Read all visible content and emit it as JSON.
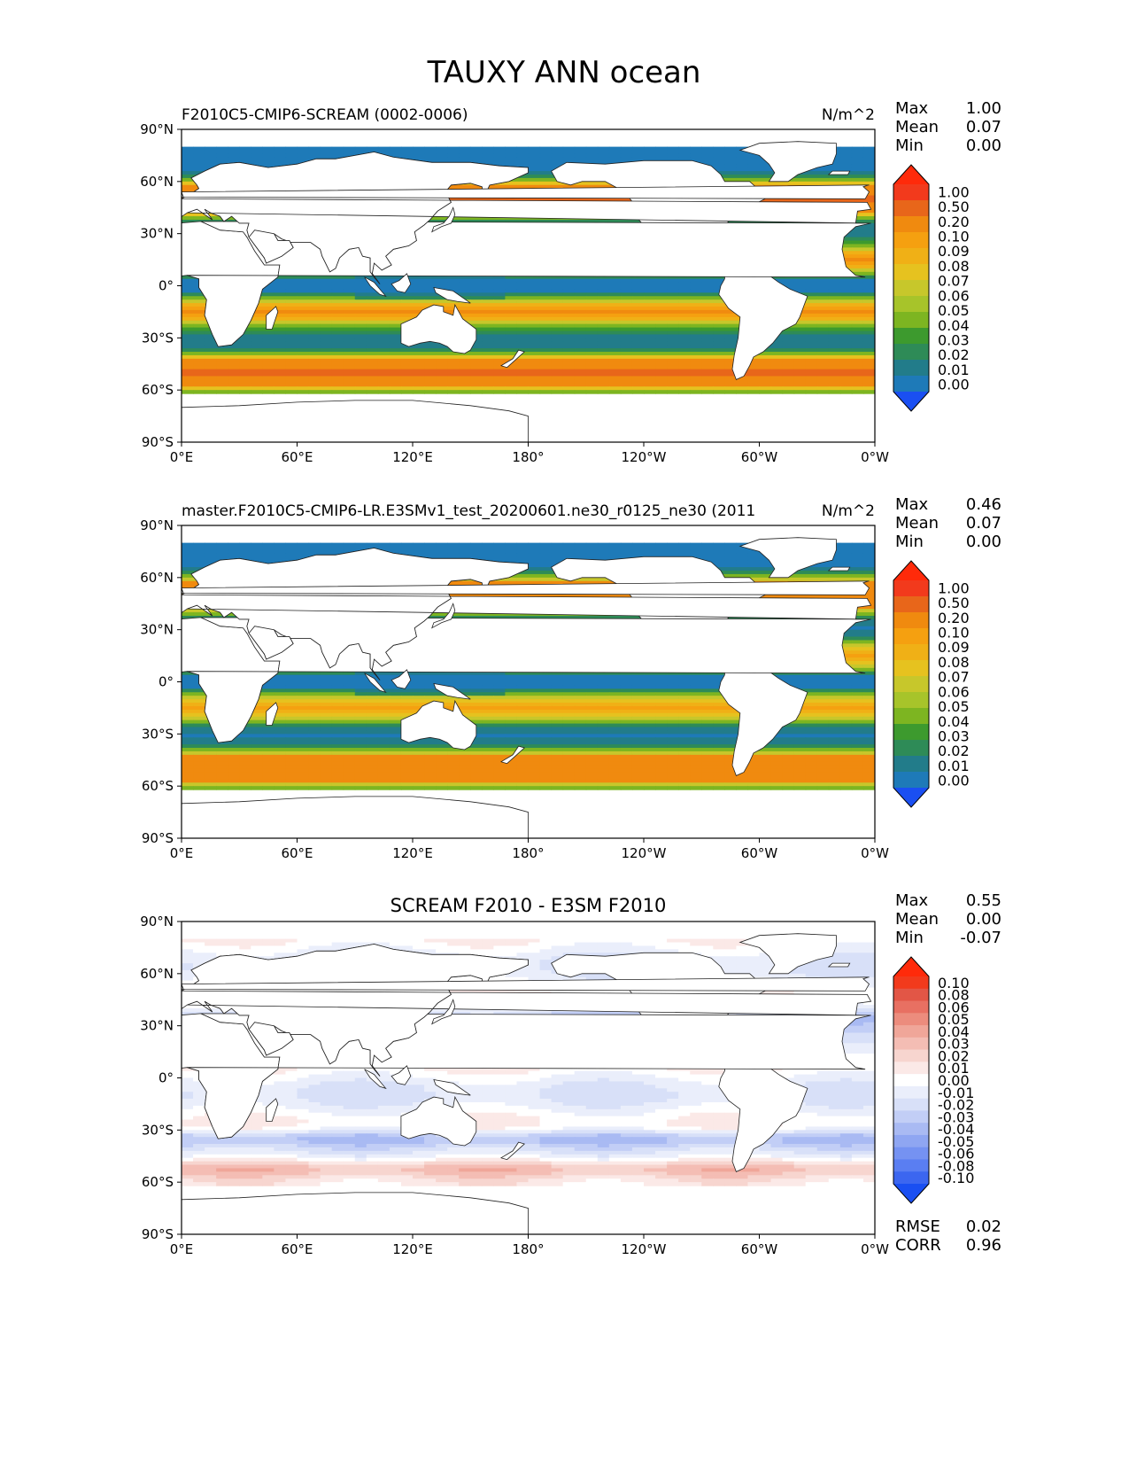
{
  "figure": {
    "title": "TAUXY ANN ocean"
  },
  "axes": {
    "y_ticks": [
      "90°N",
      "60°N",
      "30°N",
      "0°",
      "30°S",
      "60°S",
      "90°S"
    ],
    "x_ticks": [
      "0°E",
      "60°E",
      "120°E",
      "180°",
      "120°W",
      "60°W",
      "0°W"
    ]
  },
  "stat_labels": {
    "max": "Max",
    "mean": "Mean",
    "min": "Min",
    "rmse": "RMSE",
    "corr": "CORR"
  },
  "panels": [
    {
      "id": "test",
      "title_left": "F2010C5-CMIP6-SCREAM (0002-0006)",
      "title_center": "",
      "units": "N/m^2",
      "stats": {
        "max": "1.00",
        "mean": "0.07",
        "min": "0.00"
      },
      "colorbar_labels": [
        "1.00",
        "0.50",
        "0.20",
        "0.10",
        "0.09",
        "0.08",
        "0.07",
        "0.06",
        "0.05",
        "0.04",
        "0.03",
        "0.02",
        "0.01",
        "0.00"
      ]
    },
    {
      "id": "ref",
      "title_left": "master.F2010C5-CMIP6-LR.E3SMv1_test_20200601.ne30_r0125_ne30 (2011",
      "title_center": "",
      "units": "N/m^2",
      "stats": {
        "max": "0.46",
        "mean": "0.07",
        "min": "0.00"
      },
      "colorbar_labels": [
        "1.00",
        "0.50",
        "0.20",
        "0.10",
        "0.09",
        "0.08",
        "0.07",
        "0.06",
        "0.05",
        "0.04",
        "0.03",
        "0.02",
        "0.01",
        "0.00"
      ]
    },
    {
      "id": "diff",
      "title_left": "",
      "title_center": "SCREAM F2010 - E3SM F2010",
      "units": "",
      "stats": {
        "max": "0.55",
        "mean": "0.00",
        "min": "-0.07"
      },
      "colorbar_labels": [
        "0.10",
        "0.08",
        "0.06",
        "0.05",
        "0.04",
        "0.03",
        "0.02",
        "0.01",
        "0.00",
        "-0.01",
        "-0.02",
        "-0.03",
        "-0.04",
        "-0.05",
        "-0.06",
        "-0.08",
        "-0.10"
      ],
      "rmse": "0.02",
      "corr": "0.96"
    }
  ],
  "colors": {
    "seq": [
      "#1a4ff2",
      "#1e7ab8",
      "#227c8a",
      "#2e8b57",
      "#3d9a2e",
      "#7db521",
      "#a7c42a",
      "#c7c72b",
      "#e6c21f",
      "#f0b016",
      "#f5a010",
      "#f08a0f",
      "#e8661a",
      "#f23a1c",
      "#ff2a0a"
    ],
    "div": [
      "#1a4ff2",
      "#3c66f0",
      "#5a7ef2",
      "#7592f2",
      "#8fa6f2",
      "#a9baf3",
      "#c2cef6",
      "#d8e0f8",
      "#eaeefb",
      "#ffffff",
      "#fbe9e7",
      "#f7d5cf",
      "#f4bdb4",
      "#f0a699",
      "#ec8c7d",
      "#e87062",
      "#e25646",
      "#f23a1c",
      "#ff2a0a"
    ]
  },
  "chart_data": [
    {
      "type": "heatmap",
      "title": "F2010C5-CMIP6-SCREAM (0002-0006)",
      "units": "N/m^2",
      "x_range": [
        "0°E",
        "0°W"
      ],
      "y_range": [
        "90°S",
        "90°N"
      ],
      "levels": [
        0.0,
        0.01,
        0.02,
        0.03,
        0.04,
        0.05,
        0.06,
        0.07,
        0.08,
        0.09,
        0.1,
        0.2,
        0.5,
        1.0
      ],
      "stats": {
        "max": 1.0,
        "mean": 0.07,
        "min": 0.0
      }
    },
    {
      "type": "heatmap",
      "title": "master.F2010C5-CMIP6-LR.E3SMv1_test_20200601.ne30_r0125_ne30 (2011",
      "units": "N/m^2",
      "x_range": [
        "0°E",
        "0°W"
      ],
      "y_range": [
        "90°S",
        "90°N"
      ],
      "levels": [
        0.0,
        0.01,
        0.02,
        0.03,
        0.04,
        0.05,
        0.06,
        0.07,
        0.08,
        0.09,
        0.1,
        0.2,
        0.5,
        1.0
      ],
      "stats": {
        "max": 0.46,
        "mean": 0.07,
        "min": 0.0
      }
    },
    {
      "type": "heatmap",
      "title": "SCREAM F2010 - E3SM F2010",
      "x_range": [
        "0°E",
        "0°W"
      ],
      "y_range": [
        "90°S",
        "90°N"
      ],
      "levels": [
        -0.1,
        -0.08,
        -0.06,
        -0.05,
        -0.04,
        -0.03,
        -0.02,
        -0.01,
        0.0,
        0.01,
        0.02,
        0.03,
        0.04,
        0.05,
        0.06,
        0.08,
        0.1
      ],
      "stats": {
        "max": 0.55,
        "mean": 0.0,
        "min": -0.07,
        "rmse": 0.02,
        "corr": 0.96
      }
    }
  ]
}
